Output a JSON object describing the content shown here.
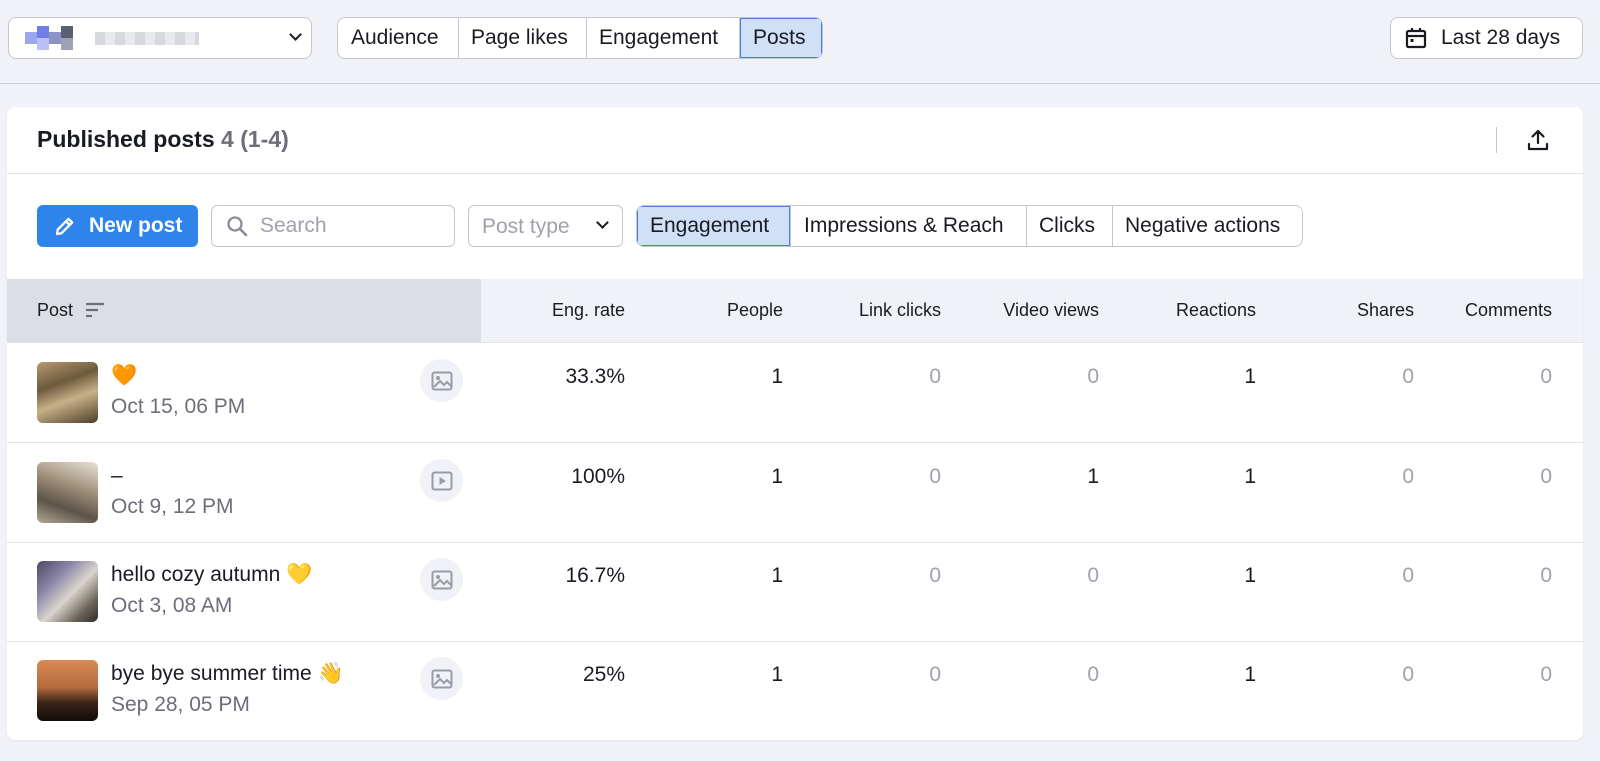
{
  "top_tabs": [
    "Audience",
    "Page likes",
    "Engagement",
    "Posts"
  ],
  "top_tabs_active": "Posts",
  "date_range_label": "Last 28 days",
  "card": {
    "title": "Published posts",
    "count": "4 (1-4)"
  },
  "toolbar": {
    "new_post_label": "New post",
    "search_placeholder": "Search",
    "post_type_placeholder": "Post type",
    "metric_tabs": [
      "Engagement",
      "Impressions & Reach",
      "Clicks",
      "Negative actions"
    ],
    "metric_tabs_active": "Engagement"
  },
  "table": {
    "columns": [
      "Post",
      "Eng. rate",
      "People",
      "Link clicks",
      "Video views",
      "Reactions",
      "Shares",
      "Comments"
    ],
    "rows": [
      {
        "text": "🧡",
        "date": "Oct 15, 06 PM",
        "media": "image-icon",
        "eng_rate": "33.3%",
        "people": "1",
        "link_clicks": "0",
        "video_views": "0",
        "reactions": "1",
        "shares": "0",
        "comments": "0"
      },
      {
        "text": "–",
        "date": "Oct 9, 12 PM",
        "media": "video-icon",
        "eng_rate": "100%",
        "people": "1",
        "link_clicks": "0",
        "video_views": "1",
        "reactions": "1",
        "shares": "0",
        "comments": "0"
      },
      {
        "text": "hello cozy autumn 💛",
        "date": "Oct 3, 08 AM",
        "media": "image-icon",
        "eng_rate": "16.7%",
        "people": "1",
        "link_clicks": "0",
        "video_views": "0",
        "reactions": "1",
        "shares": "0",
        "comments": "0"
      },
      {
        "text": "bye bye summer time 👋",
        "date": "Sep 28, 05 PM",
        "media": "image-icon",
        "eng_rate": "25%",
        "people": "1",
        "link_clicks": "0",
        "video_views": "0",
        "reactions": "1",
        "shares": "0",
        "comments": "0"
      }
    ]
  },
  "colors": {
    "accent": "#2f84ec",
    "active_tab_bg": "#cfe0f7",
    "muted_text": "#6c6e79",
    "zero_value": "#a0a2ab"
  }
}
